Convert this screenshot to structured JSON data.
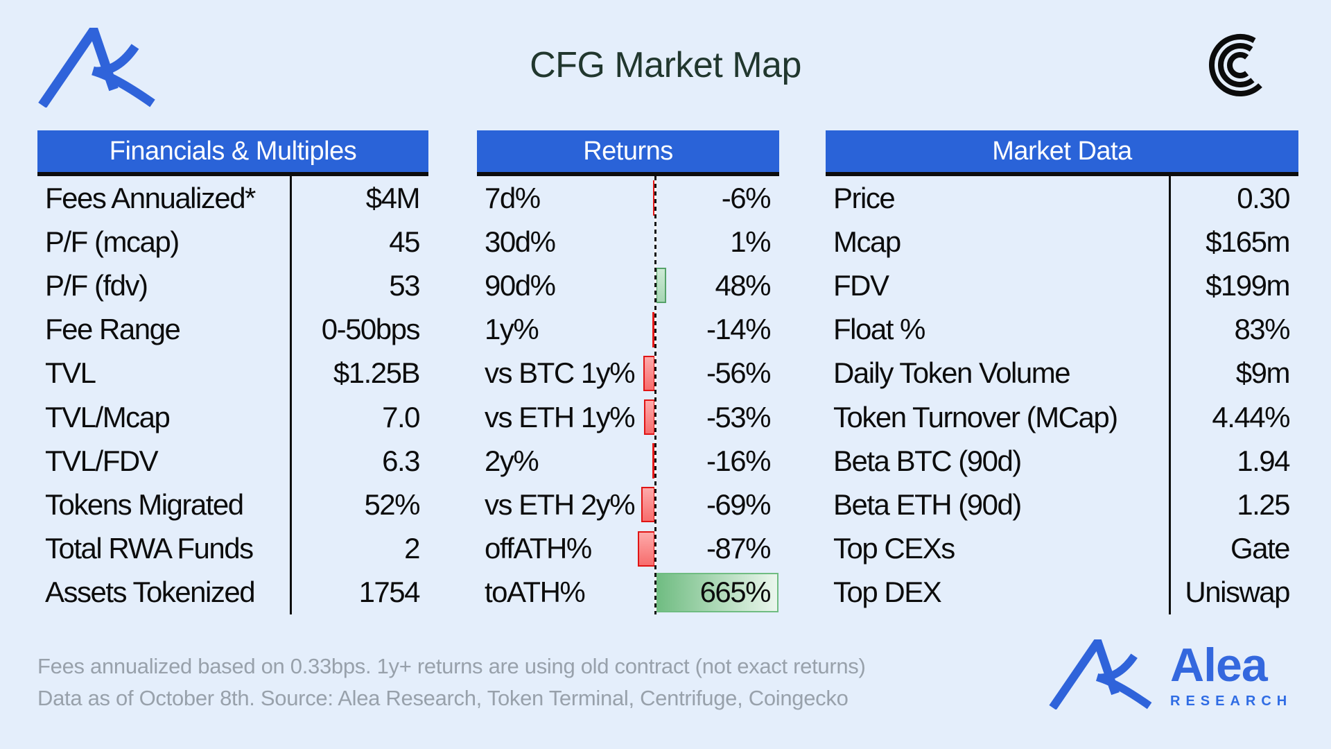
{
  "header": {
    "title": "CFG Market Map"
  },
  "tables": {
    "financials": {
      "title": "Financials & Multiples",
      "rows": [
        {
          "label": "Fees Annualized*",
          "value": "$4M"
        },
        {
          "label": "P/F (mcap)",
          "value": "45"
        },
        {
          "label": "P/F (fdv)",
          "value": "53"
        },
        {
          "label": "Fee Range",
          "value": "0-50bps"
        },
        {
          "label": "TVL",
          "value": "$1.25B"
        },
        {
          "label": "TVL/Mcap",
          "value": "7.0"
        },
        {
          "label": "TVL/FDV",
          "value": "6.3"
        },
        {
          "label": "Tokens Migrated",
          "value": "52%"
        },
        {
          "label": "Total RWA Funds",
          "value": "2"
        },
        {
          "label": "Assets Tokenized",
          "value": "1754"
        }
      ]
    },
    "returns": {
      "title": "Returns",
      "rows": [
        {
          "label": "7d%",
          "value": "-6%",
          "pct": -6
        },
        {
          "label": "30d%",
          "value": "1%",
          "pct": 1
        },
        {
          "label": "90d%",
          "value": "48%",
          "pct": 48
        },
        {
          "label": "1y%",
          "value": "-14%",
          "pct": -14
        },
        {
          "label": "vs BTC 1y%",
          "value": "-56%",
          "pct": -56
        },
        {
          "label": "vs ETH 1y%",
          "value": "-53%",
          "pct": -53
        },
        {
          "label": "2y%",
          "value": "-16%",
          "pct": -16
        },
        {
          "label": "vs ETH 2y%",
          "value": "-69%",
          "pct": -69
        },
        {
          "label": "offATH%",
          "value": "-87%",
          "pct": -87
        },
        {
          "label": "toATH%",
          "value": "665%",
          "pct": 665
        }
      ]
    },
    "market": {
      "title": "Market Data",
      "rows": [
        {
          "label": "Price",
          "value": "0.30"
        },
        {
          "label": "Mcap",
          "value": "$165m"
        },
        {
          "label": "FDV",
          "value": "$199m"
        },
        {
          "label": "Float %",
          "value": "83%"
        },
        {
          "label": "Daily Token Volume",
          "value": "$9m"
        },
        {
          "label": "Token Turnover (MCap)",
          "value": "4.44%"
        },
        {
          "label": "Beta BTC (90d)",
          "value": "1.94"
        },
        {
          "label": "Beta ETH (90d)",
          "value": "1.25"
        },
        {
          "label": "Top CEXs",
          "value": "Gate"
        },
        {
          "label": "Top DEX",
          "value": "Uniswap"
        }
      ]
    }
  },
  "footer": {
    "line1": "Fees annualized based on 0.33bps. 1y+ returns are using old contract (not exact returns)",
    "line2": "Data as of October 8th. Source: Alea Research, Token Terminal, Centrifuge, Coingecko"
  },
  "brand": {
    "name": "Alea",
    "subtitle": "RESEARCH"
  },
  "icons": {
    "top_left": "alea-logo-icon",
    "top_right": "centrifuge-logo-icon",
    "bottom_right": "alea-logo-icon"
  },
  "colors": {
    "background": "#e4eefb",
    "banner_blue": "#2a63d8",
    "banner_text": "#ffffff",
    "title_text": "#21372e",
    "body_text": "#0c0c0c",
    "footer_gray": "#98a1ab",
    "brand_blue": "#3468de",
    "bar_negative": "#e01414",
    "bar_positive": "#6fbc81"
  },
  "chart_data": [
    {
      "type": "table",
      "title": "Financials & Multiples",
      "columns": [
        "Metric",
        "Value"
      ],
      "rows": [
        [
          "Fees Annualized*",
          "$4M"
        ],
        [
          "P/F (mcap)",
          "45"
        ],
        [
          "P/F (fdv)",
          "53"
        ],
        [
          "Fee Range",
          "0-50bps"
        ],
        [
          "TVL",
          "$1.25B"
        ],
        [
          "TVL/Mcap",
          "7.0"
        ],
        [
          "TVL/FDV",
          "6.3"
        ],
        [
          "Tokens Migrated",
          "52%"
        ],
        [
          "Total RWA Funds",
          "2"
        ],
        [
          "Assets Tokenized",
          "1754"
        ]
      ]
    },
    {
      "type": "bar",
      "title": "Returns",
      "orientation": "horizontal",
      "axis": "zero-centered",
      "categories": [
        "7d%",
        "30d%",
        "90d%",
        "1y%",
        "vs BTC 1y%",
        "vs ETH 1y%",
        "2y%",
        "vs ETH 2y%",
        "offATH%",
        "toATH%"
      ],
      "values": [
        -6,
        1,
        48,
        -14,
        -56,
        -53,
        -16,
        -69,
        -87,
        665
      ],
      "value_labels": [
        "-6%",
        "1%",
        "48%",
        "-14%",
        "-56%",
        "-53%",
        "-16%",
        "-69%",
        "-87%",
        "665%"
      ],
      "xlim": [
        -665,
        665
      ],
      "positive_color": "#6fbc81",
      "negative_color": "#e01414",
      "grid": false,
      "legend": false
    },
    {
      "type": "table",
      "title": "Market Data",
      "columns": [
        "Metric",
        "Value"
      ],
      "rows": [
        [
          "Price",
          "0.30"
        ],
        [
          "Mcap",
          "$165m"
        ],
        [
          "FDV",
          "$199m"
        ],
        [
          "Float %",
          "83%"
        ],
        [
          "Daily Token Volume",
          "$9m"
        ],
        [
          "Token Turnover (MCap)",
          "4.44%"
        ],
        [
          "Beta BTC (90d)",
          "1.94"
        ],
        [
          "Beta ETH (90d)",
          "1.25"
        ],
        [
          "Top CEXs",
          "Gate"
        ],
        [
          "Top DEX",
          "Uniswap"
        ]
      ]
    }
  ]
}
